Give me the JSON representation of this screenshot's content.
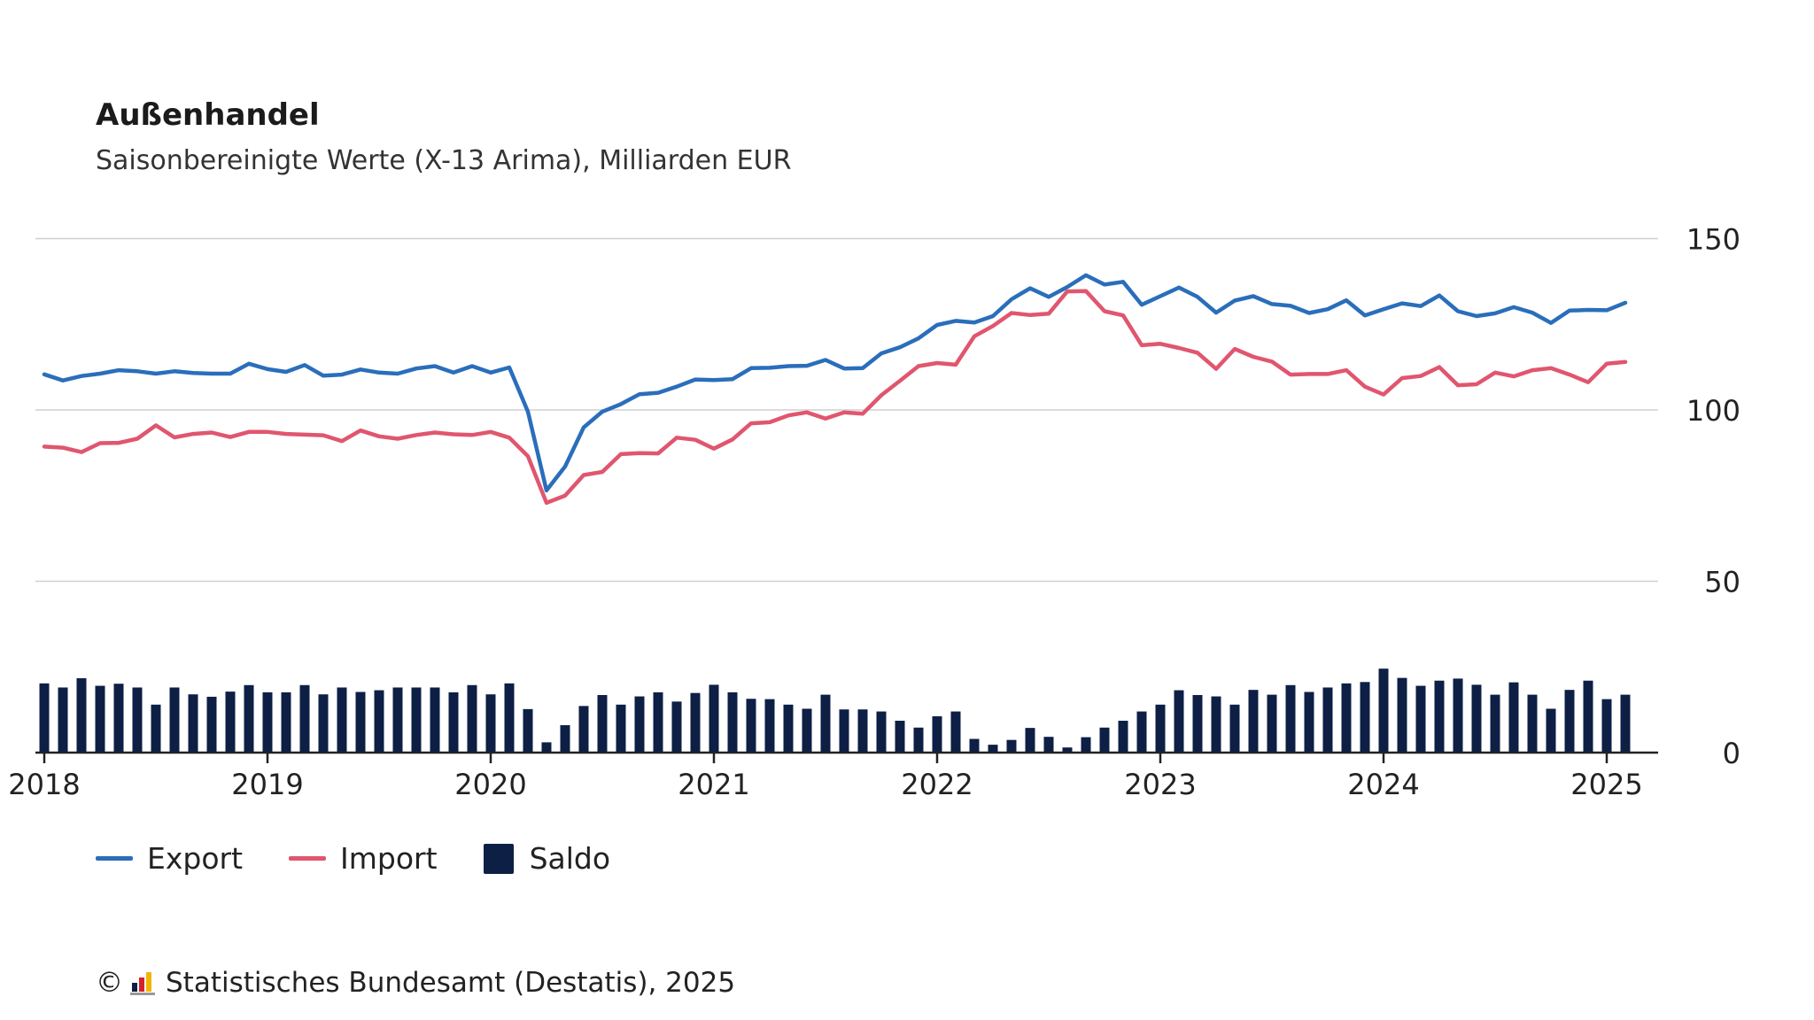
{
  "title": "Außenhandel",
  "subtitle": "Saisonbereinigte Werte (X-13 Arima), Milliarden EUR",
  "legend": {
    "export": "Export",
    "import": "Import",
    "saldo": "Saldo"
  },
  "footer": {
    "copyright_symbol": "©",
    "source": "Statistisches Bundesamt (Destatis), 2025"
  },
  "colors": {
    "export": "#2a6ebb",
    "import": "#e0566e",
    "saldo": "#0d1f45",
    "grid": "#d0d0d0",
    "axis": "#222222"
  },
  "chart_data": {
    "type": "line",
    "start": "2018-01",
    "frequency": "monthly",
    "x_tick_labels": [
      "2018",
      "2019",
      "2020",
      "2021",
      "2022",
      "2023",
      "2024",
      "2025"
    ],
    "y_ticks": [
      0,
      50,
      100,
      150
    ],
    "ylim": [
      0,
      150
    ],
    "grid": true,
    "legend_position": "bottom-left",
    "series": [
      {
        "name": "Export",
        "type": "line",
        "values": [
          110.4,
          108.6,
          109.9,
          110.6,
          111.6,
          111.3,
          110.6,
          111.3,
          110.8,
          110.6,
          110.6,
          113.5,
          111.9,
          111.1,
          113.1,
          110.0,
          110.3,
          111.8,
          110.9,
          110.6,
          112.1,
          112.8,
          110.9,
          112.8,
          110.9,
          112.4,
          99.5,
          76.5,
          83.5,
          94.9,
          99.5,
          101.7,
          104.6,
          105.0,
          106.8,
          108.9,
          108.7,
          109.0,
          112.2,
          112.3,
          112.8,
          112.9,
          114.6,
          112.1,
          112.2,
          116.5,
          118.3,
          120.9,
          124.8,
          126.0,
          125.5,
          127.4,
          132.3,
          135.5,
          133.0,
          135.9,
          139.3,
          136.6,
          137.4,
          130.7,
          133.2,
          135.7,
          133.0,
          128.4,
          131.9,
          133.2,
          130.9,
          130.4,
          128.3,
          129.4,
          132.0,
          127.6,
          129.4,
          131.1,
          130.3,
          133.4,
          128.8,
          127.4,
          128.2,
          130.0,
          128.4,
          125.4,
          129.0,
          129.2,
          129.1,
          131.3
        ]
      },
      {
        "name": "Import",
        "type": "line",
        "values": [
          89.3,
          89.0,
          87.7,
          90.3,
          90.4,
          91.6,
          95.5,
          92.0,
          93.0,
          93.4,
          92.1,
          93.6,
          93.6,
          93.0,
          92.8,
          92.6,
          90.9,
          94.0,
          92.3,
          91.6,
          92.7,
          93.4,
          92.9,
          92.7,
          93.6,
          91.9,
          86.5,
          72.9,
          75.0,
          81.0,
          81.9,
          87.1,
          87.4,
          87.3,
          91.9,
          91.3,
          88.7,
          91.4,
          96.1,
          96.4,
          98.4,
          99.3,
          97.5,
          99.3,
          98.9,
          104.3,
          108.5,
          112.8,
          113.7,
          113.2,
          121.5,
          124.5,
          128.3,
          127.7,
          128.1,
          134.6,
          134.7,
          128.8,
          127.6,
          118.9,
          119.3,
          118.1,
          116.7,
          112.0,
          117.8,
          115.5,
          114.1,
          110.3,
          110.5,
          110.5,
          111.6,
          106.8,
          104.5,
          109.3,
          109.9,
          112.5,
          107.2,
          107.5,
          110.9,
          109.8,
          111.6,
          112.2,
          110.3,
          108.1,
          113.5,
          114.0
        ]
      },
      {
        "name": "Saldo",
        "type": "bar",
        "values": [
          20.2,
          19.0,
          21.7,
          19.5,
          20.1,
          19.0,
          14.0,
          19.0,
          17.0,
          16.3,
          17.8,
          19.7,
          17.6,
          17.6,
          19.7,
          17.0,
          19.0,
          17.7,
          18.2,
          19.0,
          19.0,
          19.0,
          17.6,
          19.7,
          17.0,
          20.2,
          12.7,
          3.0,
          8.0,
          13.6,
          16.8,
          14.0,
          16.4,
          17.6,
          14.9,
          17.4,
          19.8,
          17.6,
          15.7,
          15.6,
          14.0,
          12.8,
          16.9,
          12.6,
          12.6,
          12.0,
          9.3,
          7.3,
          10.6,
          12.0,
          4.0,
          2.3,
          3.7,
          7.2,
          4.6,
          1.5,
          4.5,
          7.3,
          9.3,
          12.0,
          14.0,
          18.2,
          16.8,
          16.4,
          14.0,
          18.3,
          16.9,
          19.7,
          17.7,
          19.0,
          20.2,
          20.6,
          24.5,
          21.8,
          19.5,
          21.0,
          21.6,
          19.8,
          16.9,
          20.5,
          16.9,
          12.8,
          18.3,
          21.0,
          15.6,
          16.9
        ]
      }
    ]
  }
}
